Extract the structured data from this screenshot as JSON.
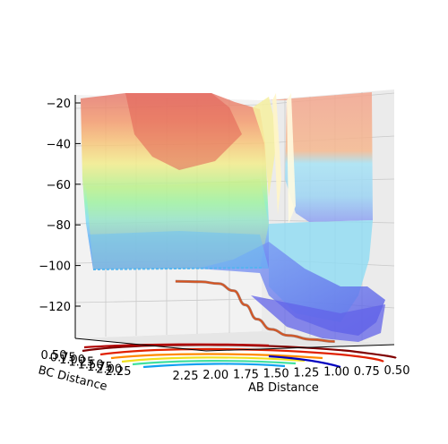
{
  "chart_data": {
    "type": "surface3d",
    "title": "",
    "zlabel": "",
    "xlabel": "AB Distance",
    "ylabel": "BC Distance",
    "z_ticks": [
      -20,
      -40,
      -60,
      -80,
      -100,
      -120
    ],
    "x_ticks": [
      "2.25",
      "2.00",
      "1.75",
      "1.50",
      "1.25",
      "1.00",
      "0.75",
      "0.50"
    ],
    "y_ticks": [
      "0.50",
      "0.75",
      "1.00",
      "1.25",
      "1.50",
      "1.75",
      "2.00",
      "2.25"
    ],
    "zlim": [
      -135,
      -15
    ],
    "colormap": "jet",
    "trajectory": {
      "description_color": "#d9531e",
      "points": [
        {
          "ab": 2.32,
          "z": -103.4
        },
        {
          "ab": 2.1,
          "z": -103.6
        },
        {
          "ab": 1.95,
          "z": -104.5
        },
        {
          "ab": 1.82,
          "z": -108
        },
        {
          "ab": 1.72,
          "z": -115
        },
        {
          "ab": 1.62,
          "z": -122
        },
        {
          "ab": 1.5,
          "z": -127
        },
        {
          "ab": 1.35,
          "z": -130
        },
        {
          "ab": 1.15,
          "z": -132
        },
        {
          "ab": 0.95,
          "z": -133
        }
      ]
    }
  }
}
